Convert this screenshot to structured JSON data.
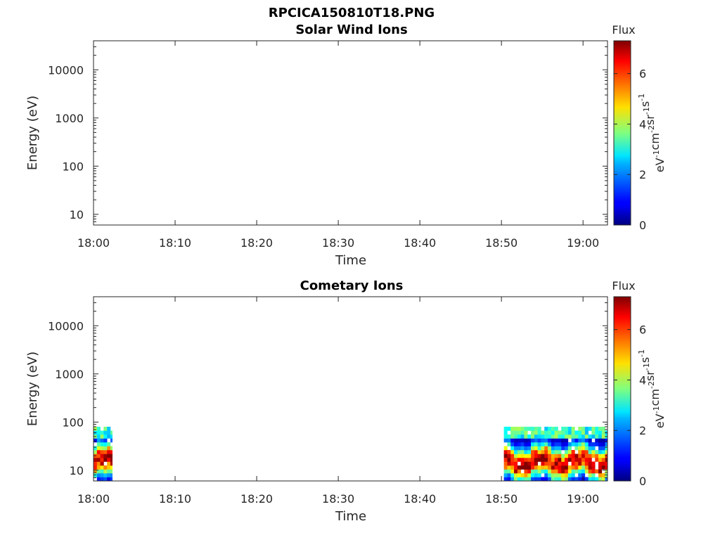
{
  "figure_title": "RPCICA150810T18.PNG",
  "chart_data": [
    {
      "type": "heatmap",
      "title": "Solar Wind Ions",
      "xlabel": "Time",
      "ylabel": "Energy (eV)",
      "yscale": "log",
      "ylim": [
        6,
        40000
      ],
      "xlim": [
        "18:00",
        "19:03"
      ],
      "x_ticks": [
        "18:00",
        "18:10",
        "18:20",
        "18:30",
        "18:40",
        "18:50",
        "19:00"
      ],
      "y_ticks": [
        "10",
        "100",
        "1000",
        "10000"
      ],
      "colorbar": {
        "label": "Flux",
        "unit_label": "eV-1cm-2sr-1s-1",
        "range": [
          0,
          7.3
        ],
        "ticks": [
          "0",
          "2",
          "4",
          "6"
        ],
        "colormap": "jet"
      },
      "grid": false,
      "blocks": []
    },
    {
      "type": "heatmap",
      "title": "Cometary Ions",
      "xlabel": "Time",
      "ylabel": "Energy (eV)",
      "yscale": "log",
      "ylim": [
        6,
        40000
      ],
      "xlim": [
        "18:00",
        "19:03"
      ],
      "x_ticks": [
        "18:00",
        "18:10",
        "18:20",
        "18:30",
        "18:40",
        "18:50",
        "19:00"
      ],
      "y_ticks": [
        "10",
        "100",
        "1000",
        "10000"
      ],
      "colorbar": {
        "label": "Flux",
        "unit_label": "eV-1cm-2sr-1s-1",
        "range": [
          0,
          7.3
        ],
        "ticks": [
          "0",
          "2",
          "4",
          "6"
        ],
        "colormap": "jet"
      },
      "grid": false,
      "blocks": [
        {
          "t_start": "18:00",
          "t_end": "18:02.3",
          "e_min": 6,
          "e_max": 80
        },
        {
          "t_start": "18:50.3",
          "t_end": "19:03",
          "e_min": 6,
          "e_max": 80
        }
      ]
    }
  ]
}
